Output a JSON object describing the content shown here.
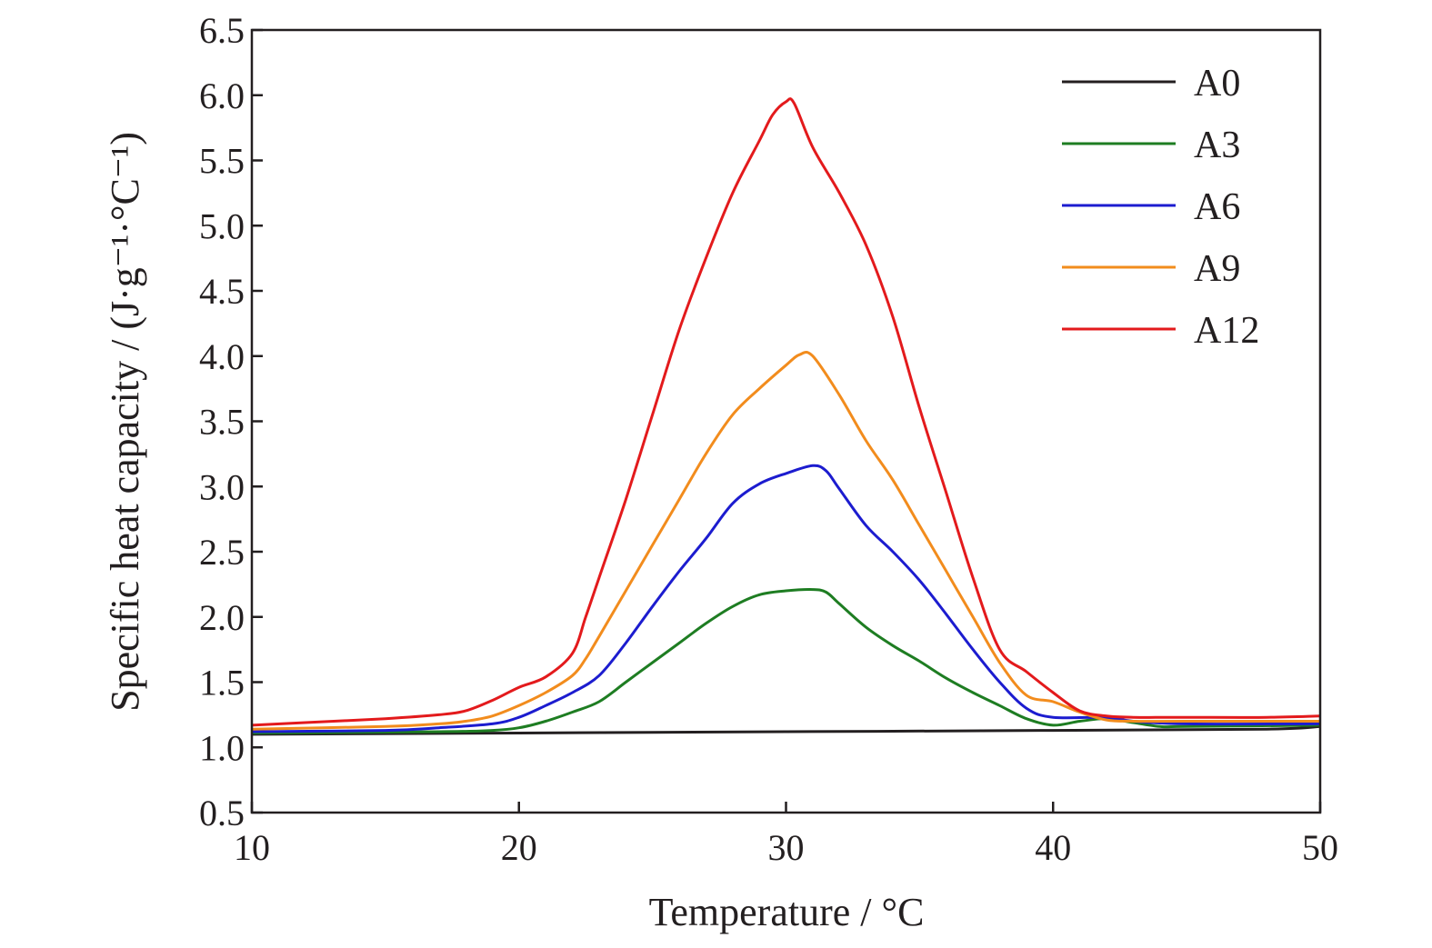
{
  "chart_data": {
    "type": "line",
    "xlabel": "Temperature / °C",
    "ylabel": "Specific heat capacity / (J·g⁻¹·°C⁻¹)",
    "xlim": [
      10,
      50
    ],
    "ylim": [
      0.5,
      6.5
    ],
    "xticks": [
      10,
      20,
      30,
      40,
      50
    ],
    "yticks": [
      0.5,
      1.0,
      1.5,
      2.0,
      2.5,
      3.0,
      3.5,
      4.0,
      4.5,
      5.0,
      5.5,
      6.0,
      6.5
    ],
    "xtick_labels": [
      "10",
      "20",
      "30",
      "40",
      "50"
    ],
    "ytick_labels": [
      "0.5",
      "1.0",
      "1.5",
      "2.0",
      "2.5",
      "3.0",
      "3.5",
      "4.0",
      "4.5",
      "5.0",
      "5.5",
      "6.0",
      "6.5"
    ],
    "grid": false,
    "legend_position": "top-right",
    "series": [
      {
        "name": "A0",
        "color": "#231f20",
        "points": [
          [
            10,
            1.1
          ],
          [
            20,
            1.11
          ],
          [
            30,
            1.12
          ],
          [
            40,
            1.13
          ],
          [
            48,
            1.14
          ],
          [
            50,
            1.16
          ]
        ]
      },
      {
        "name": "A3",
        "color": "#1e7d22",
        "points": [
          [
            10,
            1.11
          ],
          [
            17,
            1.12
          ],
          [
            19,
            1.13
          ],
          [
            20,
            1.15
          ],
          [
            21,
            1.2
          ],
          [
            22,
            1.27
          ],
          [
            23,
            1.35
          ],
          [
            24,
            1.5
          ],
          [
            25,
            1.65
          ],
          [
            26,
            1.8
          ],
          [
            27,
            1.95
          ],
          [
            28,
            2.08
          ],
          [
            29,
            2.17
          ],
          [
            30,
            2.2
          ],
          [
            31,
            2.21
          ],
          [
            31.5,
            2.19
          ],
          [
            32,
            2.1
          ],
          [
            33,
            1.92
          ],
          [
            34,
            1.78
          ],
          [
            35,
            1.66
          ],
          [
            36,
            1.53
          ],
          [
            37,
            1.42
          ],
          [
            38,
            1.32
          ],
          [
            39,
            1.22
          ],
          [
            40,
            1.17
          ],
          [
            41,
            1.2
          ],
          [
            42,
            1.22
          ],
          [
            43,
            1.19
          ],
          [
            44,
            1.16
          ],
          [
            45,
            1.16
          ],
          [
            50,
            1.17
          ]
        ]
      },
      {
        "name": "A6",
        "color": "#1c1ccf",
        "points": [
          [
            10,
            1.12
          ],
          [
            15,
            1.13
          ],
          [
            17,
            1.15
          ],
          [
            19,
            1.18
          ],
          [
            20,
            1.23
          ],
          [
            21,
            1.32
          ],
          [
            22,
            1.42
          ],
          [
            23,
            1.55
          ],
          [
            24,
            1.8
          ],
          [
            25,
            2.08
          ],
          [
            26,
            2.35
          ],
          [
            27,
            2.6
          ],
          [
            28,
            2.87
          ],
          [
            29,
            3.02
          ],
          [
            30,
            3.1
          ],
          [
            31,
            3.16
          ],
          [
            31.5,
            3.12
          ],
          [
            32,
            2.98
          ],
          [
            33,
            2.7
          ],
          [
            34,
            2.5
          ],
          [
            35,
            2.28
          ],
          [
            36,
            2.02
          ],
          [
            37,
            1.75
          ],
          [
            38,
            1.5
          ],
          [
            39,
            1.3
          ],
          [
            40,
            1.23
          ],
          [
            42,
            1.23
          ],
          [
            43,
            1.2
          ],
          [
            45,
            1.18
          ],
          [
            50,
            1.18
          ]
        ]
      },
      {
        "name": "A9",
        "color": "#f28c1d",
        "points": [
          [
            10,
            1.14
          ],
          [
            15,
            1.16
          ],
          [
            17,
            1.18
          ],
          [
            18,
            1.2
          ],
          [
            19,
            1.24
          ],
          [
            20,
            1.32
          ],
          [
            21,
            1.42
          ],
          [
            22,
            1.55
          ],
          [
            22.5,
            1.68
          ],
          [
            23,
            1.85
          ],
          [
            24,
            2.2
          ],
          [
            25,
            2.55
          ],
          [
            26,
            2.9
          ],
          [
            27,
            3.25
          ],
          [
            28,
            3.55
          ],
          [
            29,
            3.75
          ],
          [
            30,
            3.93
          ],
          [
            30.5,
            4.01
          ],
          [
            31,
            4.0
          ],
          [
            32,
            3.7
          ],
          [
            33,
            3.35
          ],
          [
            34,
            3.05
          ],
          [
            35,
            2.7
          ],
          [
            36,
            2.35
          ],
          [
            37,
            2.0
          ],
          [
            38,
            1.65
          ],
          [
            39,
            1.4
          ],
          [
            40,
            1.35
          ],
          [
            41,
            1.27
          ],
          [
            42,
            1.21
          ],
          [
            43,
            1.2
          ],
          [
            45,
            1.2
          ],
          [
            50,
            1.2
          ]
        ]
      },
      {
        "name": "A12",
        "color": "#e31a1c",
        "points": [
          [
            10,
            1.17
          ],
          [
            12,
            1.19
          ],
          [
            15,
            1.22
          ],
          [
            17,
            1.25
          ],
          [
            18,
            1.28
          ],
          [
            19,
            1.36
          ],
          [
            20,
            1.46
          ],
          [
            21,
            1.54
          ],
          [
            22,
            1.72
          ],
          [
            22.5,
            2.0
          ],
          [
            23,
            2.3
          ],
          [
            24,
            2.9
          ],
          [
            25,
            3.55
          ],
          [
            26,
            4.2
          ],
          [
            27,
            4.75
          ],
          [
            28,
            5.25
          ],
          [
            29,
            5.65
          ],
          [
            29.5,
            5.85
          ],
          [
            30,
            5.95
          ],
          [
            30.3,
            5.94
          ],
          [
            31,
            5.6
          ],
          [
            32,
            5.25
          ],
          [
            33,
            4.85
          ],
          [
            34,
            4.3
          ],
          [
            35,
            3.6
          ],
          [
            36,
            2.95
          ],
          [
            37,
            2.3
          ],
          [
            38,
            1.75
          ],
          [
            39,
            1.58
          ],
          [
            40,
            1.42
          ],
          [
            41,
            1.28
          ],
          [
            42,
            1.24
          ],
          [
            43,
            1.23
          ],
          [
            45,
            1.23
          ],
          [
            48,
            1.23
          ],
          [
            50,
            1.24
          ]
        ]
      }
    ]
  }
}
